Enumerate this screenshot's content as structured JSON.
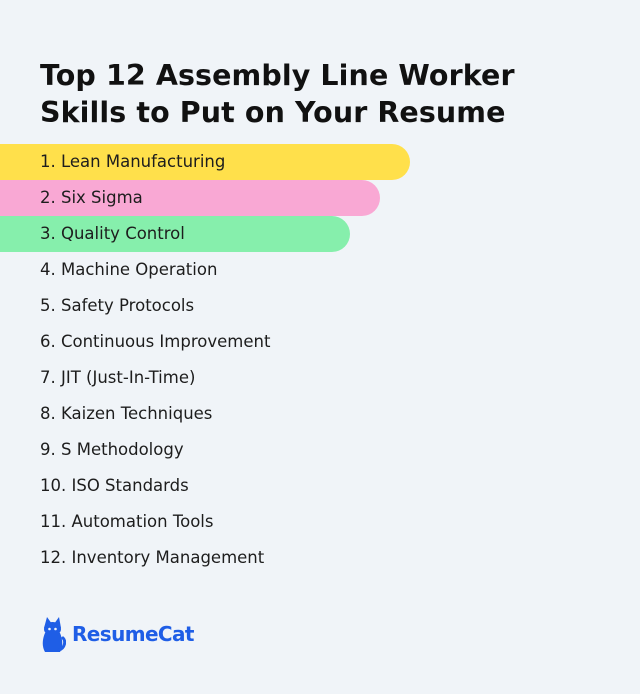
{
  "title_line1": "Top 12 Assembly Line Worker",
  "title_line2": "Skills to Put on Your Resume",
  "skills": [
    {
      "label": "1. Lean Manufacturing",
      "highlight": "#ffe04b"
    },
    {
      "label": "2. Six Sigma",
      "highlight": "#f9a8d4"
    },
    {
      "label": "3. Quality Control",
      "highlight": "#86efac"
    },
    {
      "label": "4. Machine Operation"
    },
    {
      "label": "5. Safety Protocols"
    },
    {
      "label": "6. Continuous Improvement"
    },
    {
      "label": "7. JIT (Just-In-Time)"
    },
    {
      "label": "8. Kaizen Techniques"
    },
    {
      "label": "9. S Methodology"
    },
    {
      "label": "10. ISO Standards"
    },
    {
      "label": "11. Automation Tools"
    },
    {
      "label": "12. Inventory Management"
    }
  ],
  "brand": {
    "name": "ResumeCat",
    "icon": "cat-icon",
    "color": "#1f5ee6"
  },
  "colors": {
    "background": "#f0f4f8",
    "text": "#111111"
  }
}
